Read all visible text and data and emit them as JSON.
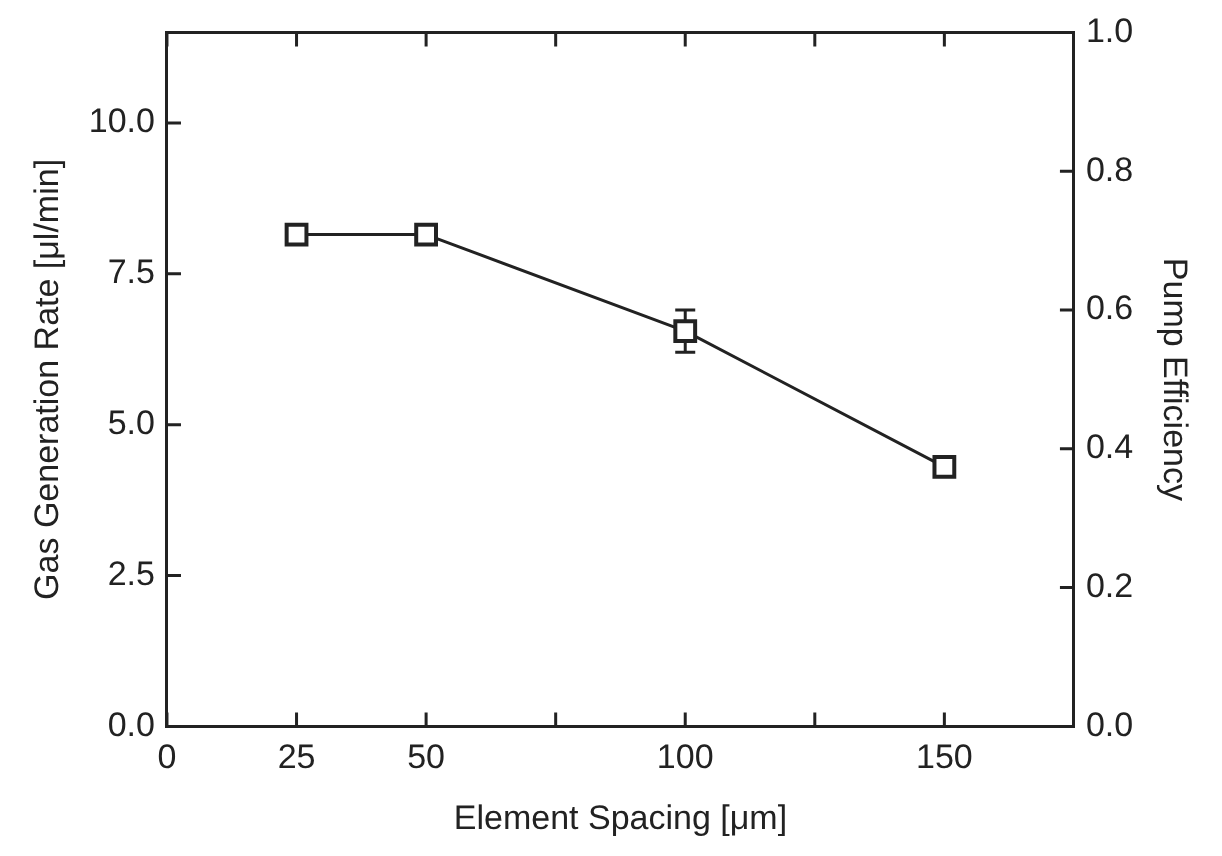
{
  "chart_data": {
    "type": "line",
    "xlabel": "Element Spacing [μm]",
    "ylabel": "Gas Generation Rate [μl/min]",
    "y2label": "Pump Efficiency",
    "x": [
      25,
      50,
      100,
      150
    ],
    "series": [
      {
        "color": "#222222",
        "values": [
          8.15,
          8.15,
          6.55,
          4.3
        ],
        "errors": [
          null,
          null,
          0.35,
          null
        ]
      }
    ],
    "xlim": [
      0,
      175
    ],
    "xticks": [
      0,
      25,
      50,
      {
        "value": 75,
        "label": null
      },
      100,
      {
        "value": 125,
        "label": null
      },
      150
    ],
    "ylim": [
      0,
      11.5
    ],
    "yticks": [
      {
        "value": 0,
        "label": "0.0"
      },
      2.5,
      {
        "value": 5,
        "label": "5.0"
      },
      7.5,
      {
        "value": 10,
        "label": "10.0"
      }
    ],
    "y2lim": [
      0,
      1
    ],
    "y2ticks": [
      {
        "value": 0,
        "label": "0.0"
      },
      0.2,
      0.4,
      0.6,
      0.8,
      {
        "value": 1,
        "label": "1.0"
      }
    ],
    "grid": false,
    "legend": false,
    "marker": "square",
    "line_style": "solid"
  }
}
